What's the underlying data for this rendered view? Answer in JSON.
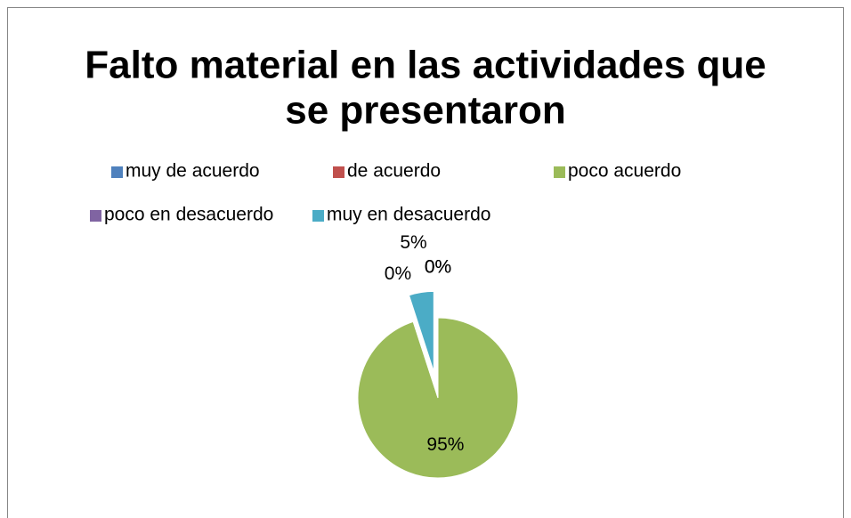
{
  "chart_data": {
    "type": "pie",
    "title": [
      "Falto material en las actividades que",
      "se presentaron"
    ],
    "categories": [
      "muy de acuerdo",
      "de acuerdo",
      "poco acuerdo",
      "poco en desacuerdo",
      "muy en desacuerdo"
    ],
    "values": [
      0,
      0,
      95,
      0,
      5
    ],
    "value_labels": [
      "0%",
      "0%",
      "95%",
      "0%",
      "5%"
    ],
    "colors": [
      "#4f81bd",
      "#c0504d",
      "#9bbb59",
      "#8064a2",
      "#4bacc6"
    ],
    "legend": "top"
  }
}
